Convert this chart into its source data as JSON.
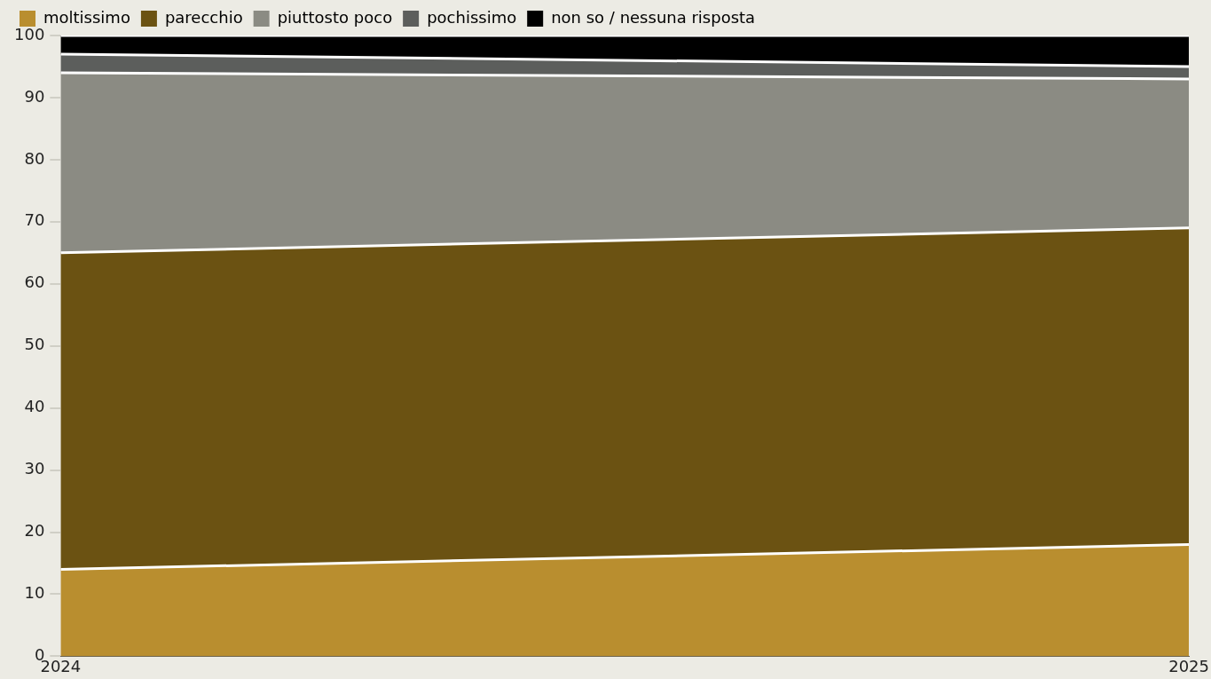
{
  "chart_data": {
    "type": "area",
    "stacked": true,
    "x": [
      2024,
      2025
    ],
    "xlim": [
      2024,
      2025
    ],
    "xticks": [
      2024,
      2025
    ],
    "ylim": [
      0,
      100
    ],
    "yticks": [
      0,
      10,
      20,
      30,
      40,
      50,
      60,
      70,
      80,
      90,
      100
    ],
    "grid": false,
    "legend": "top left",
    "series": [
      {
        "name": "moltissimo",
        "color": "#b98e2f",
        "values": [
          14,
          18
        ]
      },
      {
        "name": "parecchio",
        "color": "#6b5212",
        "values": [
          51,
          51
        ]
      },
      {
        "name": "piuttosto poco",
        "color": "#8b8b83",
        "values": [
          29,
          24
        ]
      },
      {
        "name": "pochissimo",
        "color": "#5c5e5c",
        "values": [
          3,
          2
        ]
      },
      {
        "name": "non so / nessuna risposta",
        "color": "#000000",
        "values": [
          3,
          5
        ]
      }
    ]
  }
}
